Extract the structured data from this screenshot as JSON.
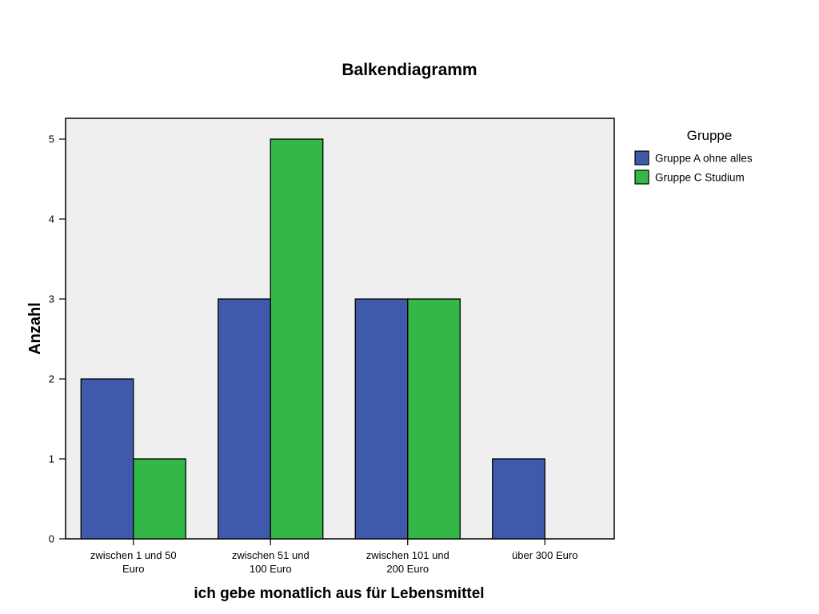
{
  "chart_data": {
    "type": "bar",
    "title": "Balkendiagramm",
    "xlabel": "ich gebe monatlich aus für Lebensmittel",
    "ylabel": "Anzahl",
    "ylim": [
      0,
      5.26
    ],
    "yticks": [
      0,
      1,
      2,
      3,
      4,
      5
    ],
    "categories": [
      [
        "zwischen 1 und 50",
        "Euro"
      ],
      [
        "zwischen 51 und",
        "100 Euro"
      ],
      [
        "zwischen 101 und",
        "200 Euro"
      ],
      [
        "über 300 Euro"
      ]
    ],
    "series": [
      {
        "name": "Gruppe A ohne alles",
        "color": "#3f59ab",
        "values": [
          2,
          3,
          3,
          1
        ]
      },
      {
        "name": "Gruppe C Studium",
        "color": "#33b848",
        "values": [
          1,
          5,
          3,
          0
        ]
      }
    ],
    "legend": {
      "title": "Gruppe",
      "position": "right"
    },
    "plot_background": "#efefef",
    "grid": false
  }
}
